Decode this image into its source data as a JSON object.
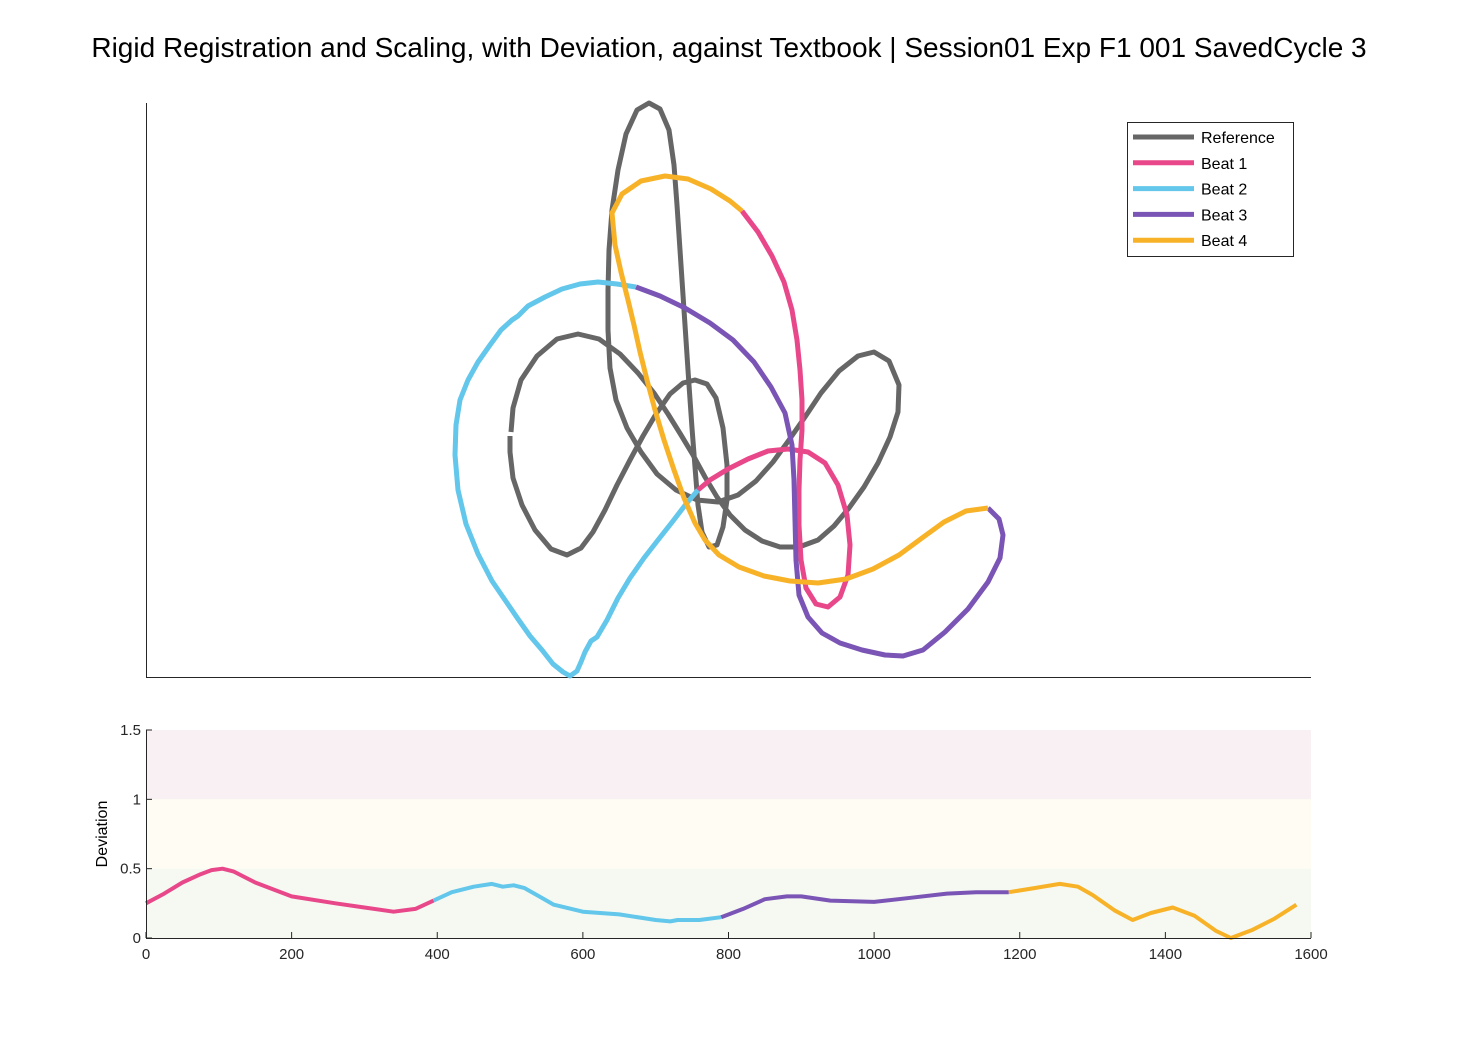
{
  "title": "Rigid Registration and Scaling, with Deviation, against Textbook | Session01 Exp F1 001 SavedCycle 3",
  "colors": {
    "reference": "#666666",
    "beat1": "#e8488a",
    "beat2": "#63c6eb",
    "beat3": "#7b55b5",
    "beat4": "#f8b228",
    "band_red": "#f9f0f3",
    "band_yellow": "#fefcf3",
    "band_green": "#f5f9f2"
  },
  "chart_data": [
    {
      "type": "line",
      "name": "trajectory-plot",
      "grid": false,
      "legend_position": "top-right",
      "legend": [
        "Reference",
        "Beat 1",
        "Beat 2",
        "Beat 3",
        "Beat 4"
      ],
      "series": [
        {
          "name": "Reference",
          "colorKey": "reference",
          "points": [
            [
              511,
              432
            ],
            [
              513,
              408
            ],
            [
              521,
              380
            ],
            [
              537,
              356
            ],
            [
              557,
              339
            ],
            [
              578,
              334
            ],
            [
              599,
              339
            ],
            [
              620,
              354
            ],
            [
              638,
              373
            ],
            [
              654,
              393
            ],
            [
              668,
              414
            ],
            [
              681,
              435
            ],
            [
              693,
              455
            ],
            [
              705,
              477
            ],
            [
              717,
              497
            ],
            [
              730,
              515
            ],
            [
              745,
              530
            ],
            [
              762,
              541
            ],
            [
              780,
              547
            ],
            [
              799,
              547
            ],
            [
              818,
              540
            ],
            [
              834,
              526
            ],
            [
              849,
              508
            ],
            [
              864,
              487
            ],
            [
              878,
              463
            ],
            [
              890,
              437
            ],
            [
              898,
              412
            ],
            [
              899,
              385
            ],
            [
              889,
              361
            ],
            [
              874,
              352
            ],
            [
              858,
              356
            ],
            [
              839,
              371
            ],
            [
              821,
              393
            ],
            [
              805,
              417
            ],
            [
              789,
              440
            ],
            [
              773,
              462
            ],
            [
              756,
              481
            ],
            [
              738,
              495
            ],
            [
              718,
              502
            ],
            [
              697,
              500
            ],
            [
              676,
              490
            ],
            [
              657,
              474
            ],
            [
              641,
              452
            ],
            [
              627,
              428
            ],
            [
              616,
              400
            ],
            [
              610,
              368
            ],
            [
              608,
              330
            ],
            [
              608,
              290
            ],
            [
              609,
              250
            ],
            [
              612,
              210
            ],
            [
              618,
              170
            ],
            [
              626,
              134
            ],
            [
              637,
              110
            ],
            [
              649,
              103
            ],
            [
              660,
              109
            ],
            [
              669,
              130
            ],
            [
              674,
              165
            ],
            [
              677,
              205
            ],
            [
              680,
              250
            ],
            [
              683,
              295
            ],
            [
              686,
              340
            ],
            [
              689,
              385
            ],
            [
              692,
              428
            ],
            [
              695,
              467
            ],
            [
              698,
              505
            ],
            [
              702,
              532
            ],
            [
              709,
              547
            ],
            [
              717,
              545
            ],
            [
              723,
              527
            ],
            [
              727,
              500
            ],
            [
              727,
              465
            ],
            [
              723,
              428
            ],
            [
              716,
              398
            ],
            [
              707,
              384
            ],
            [
              695,
              380
            ],
            [
              683,
              383
            ],
            [
              670,
              394
            ],
            [
              656,
              414
            ],
            [
              643,
              436
            ],
            [
              630,
              460
            ],
            [
              617,
              485
            ],
            [
              605,
              510
            ],
            [
              593,
              532
            ],
            [
              581,
              548
            ],
            [
              567,
              555
            ],
            [
              551,
              549
            ],
            [
              535,
              530
            ],
            [
              522,
              505
            ],
            [
              513,
              478
            ],
            [
              510,
              452
            ],
            [
              510,
              436
            ]
          ]
        },
        {
          "name": "Beat 1",
          "colorKey": "beat1",
          "points": [
            [
              742,
              211
            ],
            [
              758,
              232
            ],
            [
              772,
              256
            ],
            [
              784,
              282
            ],
            [
              792,
              310
            ],
            [
              797,
              340
            ],
            [
              800,
              370
            ],
            [
              802,
              400
            ],
            [
              802,
              430
            ],
            [
              800,
              460
            ],
            [
              799,
              490
            ],
            [
              799,
              525
            ],
            [
              801,
              560
            ],
            [
              806,
              588
            ],
            [
              816,
              604
            ],
            [
              828,
              607
            ],
            [
              840,
              597
            ],
            [
              848,
              575
            ],
            [
              850,
              545
            ],
            [
              847,
              515
            ],
            [
              838,
              485
            ],
            [
              825,
              463
            ],
            [
              808,
              452
            ],
            [
              788,
              449
            ],
            [
              768,
              451
            ],
            [
              748,
              459
            ],
            [
              728,
              469
            ],
            [
              710,
              480
            ],
            [
              698,
              490
            ]
          ]
        },
        {
          "name": "Beat 2",
          "colorKey": "beat2",
          "points": [
            [
              698,
              490
            ],
            [
              686,
              504
            ],
            [
              673,
              521
            ],
            [
              658,
              540
            ],
            [
              644,
              558
            ],
            [
              630,
              578
            ],
            [
              618,
              598
            ],
            [
              607,
              620
            ],
            [
              597,
              637
            ],
            [
              591,
              641
            ],
            [
              585,
              652
            ],
            [
              581,
              662
            ],
            [
              577,
              671
            ],
            [
              570,
              676
            ],
            [
              563,
              672
            ],
            [
              553,
              664
            ],
            [
              542,
              650
            ],
            [
              530,
              636
            ],
            [
              518,
              619
            ],
            [
              505,
              600
            ],
            [
              492,
              581
            ],
            [
              478,
              554
            ],
            [
              466,
              524
            ],
            [
              458,
              490
            ],
            [
              455,
              455
            ],
            [
              456,
              425
            ],
            [
              460,
              400
            ],
            [
              468,
              380
            ],
            [
              478,
              362
            ],
            [
              490,
              345
            ],
            [
              501,
              330
            ],
            [
              512,
              320
            ],
            [
              518,
              316
            ],
            [
              528,
              306
            ],
            [
              545,
              297
            ],
            [
              562,
              289
            ],
            [
              580,
              284
            ],
            [
              598,
              282
            ],
            [
              617,
              284
            ],
            [
              636,
              287
            ]
          ]
        },
        {
          "name": "Beat 3",
          "colorKey": "beat3",
          "points": [
            [
              636,
              287
            ],
            [
              660,
              296
            ],
            [
              685,
              308
            ],
            [
              710,
              323
            ],
            [
              733,
              340
            ],
            [
              754,
              362
            ],
            [
              771,
              387
            ],
            [
              785,
              413
            ],
            [
              792,
              445
            ],
            [
              794,
              480
            ],
            [
              795,
              520
            ],
            [
              796,
              560
            ],
            [
              799,
              595
            ],
            [
              808,
              617
            ],
            [
              822,
              633
            ],
            [
              840,
              643
            ],
            [
              862,
              650
            ],
            [
              885,
              655
            ],
            [
              903,
              656
            ],
            [
              923,
              650
            ],
            [
              945,
              632
            ],
            [
              968,
              609
            ],
            [
              988,
              582
            ],
            [
              1000,
              558
            ],
            [
              1003,
              535
            ],
            [
              999,
              519
            ],
            [
              988,
              508
            ]
          ]
        },
        {
          "name": "Beat 4",
          "colorKey": "beat4",
          "points": [
            [
              988,
              508
            ],
            [
              966,
              511
            ],
            [
              944,
              522
            ],
            [
              922,
              538
            ],
            [
              899,
              555
            ],
            [
              873,
              569
            ],
            [
              846,
              579
            ],
            [
              818,
              583
            ],
            [
              790,
              581
            ],
            [
              764,
              576
            ],
            [
              739,
              567
            ],
            [
              719,
              555
            ],
            [
              705,
              540
            ],
            [
              695,
              523
            ],
            [
              684,
              498
            ],
            [
              674,
              470
            ],
            [
              664,
              440
            ],
            [
              655,
              410
            ],
            [
              647,
              380
            ],
            [
              640,
              352
            ],
            [
              634,
              325
            ],
            [
              628,
              300
            ],
            [
              621,
              272
            ],
            [
              615,
              245
            ],
            [
              612,
              213
            ],
            [
              622,
              194
            ],
            [
              641,
              181
            ],
            [
              665,
              176
            ],
            [
              688,
              179
            ],
            [
              711,
              189
            ],
            [
              730,
              201
            ],
            [
              742,
              211
            ]
          ]
        }
      ]
    },
    {
      "type": "line",
      "name": "deviation-plot",
      "ylabel": "Deviation",
      "xlim": [
        0,
        1600
      ],
      "ylim": [
        0,
        1.5
      ],
      "xticks": [
        "0",
        "200",
        "400",
        "600",
        "800",
        "1000",
        "1200",
        "1400",
        "1600"
      ],
      "yticks": [
        "0",
        "0.5",
        "1",
        "1.5"
      ],
      "bands": [
        {
          "from": 1.0,
          "to": 1.5,
          "colorKey": "band_red"
        },
        {
          "from": 0.5,
          "to": 1.0,
          "colorKey": "band_yellow"
        },
        {
          "from": 0,
          "to": 0.5,
          "colorKey": "band_green"
        }
      ],
      "series": [
        {
          "name": "Beat 1",
          "colorKey": "beat1",
          "x": [
            0,
            25,
            50,
            75,
            90,
            105,
            120,
            150,
            200,
            260,
            300,
            340,
            370,
            395
          ],
          "y": [
            0.25,
            0.32,
            0.4,
            0.46,
            0.49,
            0.5,
            0.48,
            0.4,
            0.3,
            0.25,
            0.22,
            0.19,
            0.21,
            0.27
          ]
        },
        {
          "name": "Beat 2",
          "colorKey": "beat2",
          "x": [
            395,
            420,
            450,
            475,
            490,
            505,
            520,
            540,
            560,
            600,
            650,
            700,
            720,
            730,
            740,
            760,
            790
          ],
          "y": [
            0.27,
            0.33,
            0.37,
            0.39,
            0.37,
            0.38,
            0.36,
            0.3,
            0.24,
            0.19,
            0.17,
            0.13,
            0.12,
            0.13,
            0.13,
            0.13,
            0.15
          ]
        },
        {
          "name": "Beat 3",
          "colorKey": "beat3",
          "x": [
            790,
            820,
            850,
            880,
            900,
            940,
            1000,
            1050,
            1100,
            1140,
            1185
          ],
          "y": [
            0.15,
            0.21,
            0.28,
            0.3,
            0.3,
            0.27,
            0.26,
            0.29,
            0.32,
            0.33,
            0.33
          ]
        },
        {
          "name": "Beat 4",
          "colorKey": "beat4",
          "x": [
            1185,
            1220,
            1255,
            1280,
            1300,
            1330,
            1355,
            1380,
            1410,
            1440,
            1470,
            1490,
            1520,
            1550,
            1580
          ],
          "y": [
            0.33,
            0.36,
            0.39,
            0.37,
            0.31,
            0.2,
            0.13,
            0.18,
            0.22,
            0.16,
            0.05,
            0.0,
            0.06,
            0.14,
            0.24
          ]
        }
      ]
    }
  ]
}
